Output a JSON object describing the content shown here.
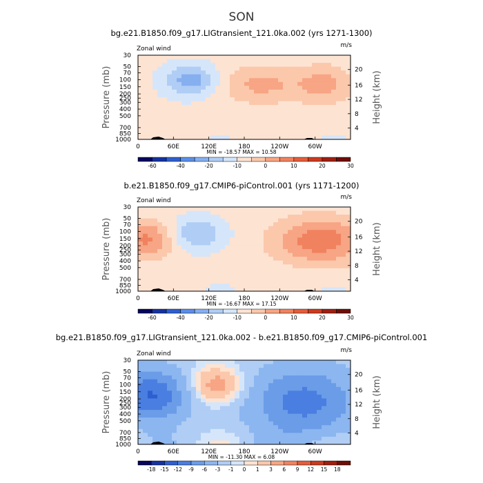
{
  "title": "SON",
  "chart_data": [
    {
      "type": "heatmap",
      "panel_title": "bg.e21.B1850.f09_g17.LIGtransient_121.0ka.002 (yrs 1271-1300)",
      "variable_label": "Zonal wind",
      "units": "m/s",
      "ylabel": "Pressure (mb)",
      "ylabel_right": "Height (km)",
      "pressure_ticks": [
        "30",
        "50",
        "70",
        "100",
        "150",
        "200",
        "250",
        "300",
        "400",
        "500",
        "700",
        "850",
        "1000"
      ],
      "height_ticks": [
        "20",
        "16",
        "12",
        "8",
        "4"
      ],
      "lon_ticks": [
        "0",
        "60E",
        "120E",
        "180",
        "120W",
        "60W"
      ],
      "stats": "MIN = -18.57   MAX =  10.58",
      "min": -18.57,
      "max": 10.58,
      "colorbar_levels": [
        "-60",
        "-40",
        "-20",
        "-10",
        "0",
        "10",
        "20",
        "30"
      ],
      "features": [
        {
          "name": "negative core near 60-80E, 100-150 mb",
          "value": -15
        },
        {
          "name": "positive core near 150E, 150 mb",
          "value": 10
        },
        {
          "name": "positive core near 80W, 150 mb",
          "value": 10
        }
      ]
    },
    {
      "type": "heatmap",
      "panel_title": "b.e21.B1850.f09_g17.CMIP6-piControl.001 (yrs 1171-1200)",
      "variable_label": "Zonal wind",
      "units": "m/s",
      "ylabel": "Pressure (mb)",
      "ylabel_right": "Height (km)",
      "pressure_ticks": [
        "30",
        "50",
        "70",
        "100",
        "150",
        "200",
        "250",
        "300",
        "400",
        "500",
        "700",
        "850",
        "1000"
      ],
      "height_ticks": [
        "20",
        "16",
        "12",
        "8",
        "4"
      ],
      "lon_ticks": [
        "0",
        "60E",
        "120E",
        "180",
        "120W",
        "60W"
      ],
      "stats": "MIN = -16.67   MAX =  17.15",
      "min": -16.67,
      "max": 17.15,
      "colorbar_levels": [
        "-60",
        "-40",
        "-20",
        "-10",
        "0",
        "10",
        "20",
        "30"
      ],
      "features": [
        {
          "name": "negative core near 90E, 120 mb",
          "value": -12
        },
        {
          "name": "positive core near 0-10E, 150 mb",
          "value": 15
        },
        {
          "name": "positive core near 70W, 150 mb",
          "value": 17
        }
      ]
    },
    {
      "type": "heatmap",
      "panel_title": "bg.e21.B1850.f09_g17.LIGtransient_121.0ka.002 - b.e21.B1850.f09_g17.CMIP6-piControl.001",
      "variable_label": "Zonal wind",
      "units": "m/s",
      "ylabel": "Pressure (mb)",
      "ylabel_right": "Height (km)",
      "pressure_ticks": [
        "30",
        "50",
        "70",
        "100",
        "150",
        "200",
        "250",
        "300",
        "400",
        "500",
        "700",
        "850",
        "1000"
      ],
      "height_ticks": [
        "20",
        "16",
        "12",
        "8",
        "4"
      ],
      "lon_ticks": [
        "0",
        "60E",
        "120E",
        "180",
        "120W",
        "60W"
      ],
      "stats": "MIN = -11.30   MAX =   6.08",
      "min": -11.3,
      "max": 6.08,
      "colorbar_levels": [
        "-18",
        "-15",
        "-12",
        "-9",
        "-6",
        "-3",
        "-1",
        "0",
        "1",
        "3",
        "6",
        "9",
        "12",
        "15",
        "18"
      ],
      "features": [
        {
          "name": "negative anomaly near 0-30E, 150-200 mb",
          "value": -11
        },
        {
          "name": "positive anomaly near 130E, 120 mb",
          "value": 6
        },
        {
          "name": "negative anomaly near 60W, 200 mb",
          "value": -9
        }
      ]
    }
  ],
  "colors": {
    "abs_scale": [
      "#06065e",
      "#1432a0",
      "#2e5fd0",
      "#5a8ee8",
      "#86aff0",
      "#b0cdf5",
      "#d6e6fa",
      "#fde3d2",
      "#fbc8ac",
      "#f7a584",
      "#f0825f",
      "#e45d3a",
      "#cc3a1e",
      "#9e1f10",
      "#6e0d06"
    ],
    "diff_scale": [
      "#06065e",
      "#1432a0",
      "#2e5fd0",
      "#4a7ee0",
      "#6a9ce8",
      "#8cb6f0",
      "#b0cdf5",
      "#d6e6fa",
      "#fde3d2",
      "#fbc8ac",
      "#f7a584",
      "#f0825f",
      "#e45d3a",
      "#cc3a1e",
      "#9e1f10",
      "#6e0d06"
    ]
  }
}
